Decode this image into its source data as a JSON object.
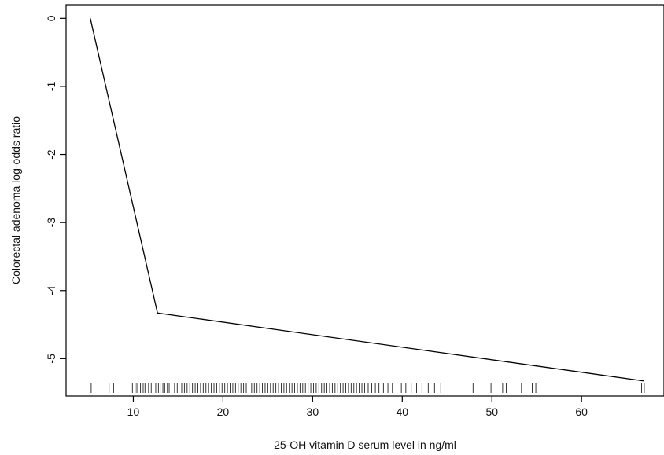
{
  "chart_data": {
    "type": "line",
    "title": "",
    "xlabel": "25-OH vitamin D serum level in ng/ml",
    "ylabel": "Colorectal adenoma log-odds ratio",
    "xlim": [
      2.5,
      69.2
    ],
    "ylim": [
      -5.55,
      0.2
    ],
    "xticks": [
      10,
      20,
      30,
      40,
      50,
      60
    ],
    "xtick_labels": [
      "10",
      "20",
      "30",
      "40",
      "50",
      "60"
    ],
    "yticks": [
      0,
      -1,
      -2,
      -3,
      -4,
      -5
    ],
    "ytick_labels": [
      "0",
      "-1",
      "-2",
      "-3",
      "-4",
      "-5"
    ],
    "grid": false,
    "legend": "none",
    "series": [
      {
        "x": [
          5.2,
          12.7,
          67.0
        ],
        "y": [
          0.0,
          -4.33,
          -5.33
        ]
      }
    ],
    "rug_x": [
      5.3,
      7.3,
      7.8,
      9.9,
      10.2,
      10.4,
      10.8,
      11.1,
      11.3,
      11.7,
      12.0,
      12.2,
      12.5,
      12.8,
      13.0,
      13.3,
      13.5,
      13.8,
      14.0,
      14.3,
      14.6,
      14.9,
      15.1,
      15.4,
      15.7,
      16.0,
      16.3,
      16.6,
      16.9,
      17.2,
      17.5,
      17.8,
      18.1,
      18.4,
      18.7,
      19.0,
      19.3,
      19.6,
      19.9,
      20.2,
      20.5,
      20.8,
      21.1,
      21.4,
      21.7,
      22.0,
      22.3,
      22.6,
      22.9,
      23.2,
      23.5,
      23.8,
      24.1,
      24.4,
      24.7,
      25.0,
      25.3,
      25.6,
      25.9,
      26.2,
      26.5,
      26.8,
      27.1,
      27.4,
      27.7,
      28.0,
      28.3,
      28.6,
      28.9,
      29.2,
      29.5,
      29.8,
      30.1,
      30.4,
      30.7,
      31.0,
      31.3,
      31.6,
      31.9,
      32.2,
      32.5,
      32.8,
      33.1,
      33.4,
      33.7,
      34.0,
      34.3,
      34.6,
      34.9,
      35.2,
      35.5,
      35.8,
      36.2,
      36.6,
      37.0,
      37.4,
      37.9,
      38.4,
      38.9,
      39.4,
      39.9,
      40.4,
      41.0,
      41.6,
      42.2,
      42.9,
      43.6,
      44.3,
      47.9,
      49.9,
      51.2,
      51.6,
      53.3,
      54.5,
      54.9,
      66.7,
      67.0
    ]
  }
}
